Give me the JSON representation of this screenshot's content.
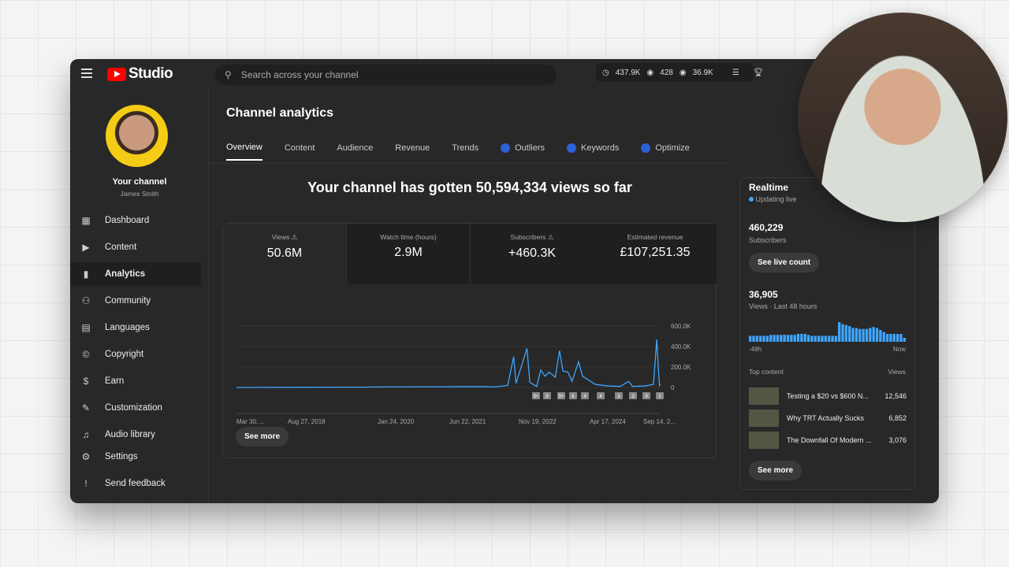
{
  "app": {
    "logo": "Studio",
    "search_placeholder": "Search across your channel",
    "stats": [
      "437.9K",
      "428",
      "36.9K"
    ]
  },
  "channel": {
    "name": "Your channel",
    "handle": "James Smith"
  },
  "sidebar": {
    "items": [
      {
        "label": "Dashboard",
        "icon": "grid-icon"
      },
      {
        "label": "Content",
        "icon": "play-icon"
      },
      {
        "label": "Analytics",
        "icon": "bar-chart-icon",
        "active": true
      },
      {
        "label": "Community",
        "icon": "people-icon"
      },
      {
        "label": "Languages",
        "icon": "subtitles-icon"
      },
      {
        "label": "Copyright",
        "icon": "copyright-icon"
      },
      {
        "label": "Earn",
        "icon": "dollar-icon"
      },
      {
        "label": "Customization",
        "icon": "wand-icon"
      },
      {
        "label": "Audio library",
        "icon": "audio-icon"
      }
    ],
    "settings": "Settings",
    "feedback": "Send feedback"
  },
  "page": {
    "title": "Channel analytics",
    "tabs": [
      "Overview",
      "Content",
      "Audience",
      "Revenue",
      "Trends",
      "Outliers",
      "Keywords",
      "Optimize"
    ],
    "headline": "Your channel has gotten 50,594,334 views so far",
    "see_more": "See more"
  },
  "metrics": [
    {
      "label": "Views",
      "value": "50.6M",
      "warn": true
    },
    {
      "label": "Watch time (hours)",
      "value": "2.9M"
    },
    {
      "label": "Subscribers",
      "value": "+460.3K",
      "warn": true
    },
    {
      "label": "Estimated revenue",
      "value": "£107,251.35"
    }
  ],
  "chart_data": {
    "type": "line",
    "series": [
      {
        "values": [
          [
            "2017-03-30",
            0
          ],
          [
            "2019-10-01",
            3000
          ],
          [
            "2020-01-24",
            5000
          ],
          [
            "2022-03-01",
            8000
          ],
          [
            "2022-06-01",
            5000
          ],
          [
            "2022-09-01",
            20000
          ],
          [
            "2022-10-15",
            300000
          ],
          [
            "2022-11-01",
            40000
          ],
          [
            "2023-01-20",
            380000
          ],
          [
            "2023-02-10",
            50000
          ],
          [
            "2023-04-01",
            10000
          ],
          [
            "2023-05-01",
            170000
          ],
          [
            "2023-06-01",
            110000
          ],
          [
            "2023-07-01",
            150000
          ],
          [
            "2023-08-15",
            100000
          ],
          [
            "2023-09-15",
            360000
          ],
          [
            "2023-10-10",
            160000
          ],
          [
            "2023-11-15",
            150000
          ],
          [
            "2023-12-15",
            60000
          ],
          [
            "2024-02-01",
            250000
          ],
          [
            "2024-03-01",
            110000
          ],
          [
            "2024-04-17",
            70000
          ],
          [
            "2024-06-01",
            30000
          ],
          [
            "2024-09-01",
            15000
          ],
          [
            "2024-12-01",
            10000
          ],
          [
            "2025-02-01",
            60000
          ],
          [
            "2025-03-01",
            10000
          ],
          [
            "2025-06-01",
            15000
          ],
          [
            "2025-08-01",
            30000
          ],
          [
            "2025-08-25",
            470000
          ],
          [
            "2025-09-05",
            200000
          ],
          [
            "2025-09-14",
            20000
          ],
          [
            "2025-09-20",
            35000
          ]
        ]
      }
    ],
    "x_ticks": [
      "Mar 30, ...",
      "Aug 27, 2018",
      "Jan 24, 2020",
      "Jun 22, 2021",
      "Nov 19, 2022",
      "Apr 17, 2024",
      "Sep 14, 2..."
    ],
    "y_ticks": [
      "600.0K",
      "400.0K",
      "200.0K",
      "0"
    ],
    "ylim": [
      0,
      600000
    ],
    "grid": true,
    "markers": [
      "9+",
      "9",
      "9+",
      "6",
      "4",
      "4",
      "3",
      "3",
      "9",
      "2"
    ]
  },
  "realtime": {
    "title": "Realtime",
    "status": "Updating live",
    "subs": "460,229",
    "subs_label": "Subscribers",
    "live_btn": "See live count",
    "views": "36,905",
    "views_label": "Views · Last 48 hours",
    "start": "-48h",
    "end": "Now",
    "bars": [
      3,
      3,
      3,
      3,
      3,
      3,
      3.5,
      3.5,
      3.5,
      3.5,
      3.5,
      3.5,
      3.5,
      3.5,
      4,
      4,
      4,
      3.5,
      3,
      3,
      3,
      3,
      3,
      3,
      3,
      3,
      10,
      9,
      8.5,
      8,
      7,
      7,
      6.5,
      6.5,
      6.5,
      7,
      7.5,
      7,
      6,
      5,
      4,
      4,
      4,
      4,
      4,
      2
    ],
    "top_label": "Top content",
    "views_col": "Views",
    "top": [
      {
        "title": "Testing a $20 vs $600 N...",
        "views": "12,546"
      },
      {
        "title": "Why TRT Actually Sucks",
        "views": "6,852"
      },
      {
        "title": "The Downfall Of Modern ...",
        "views": "3,076"
      }
    ],
    "see_more": "See more"
  }
}
